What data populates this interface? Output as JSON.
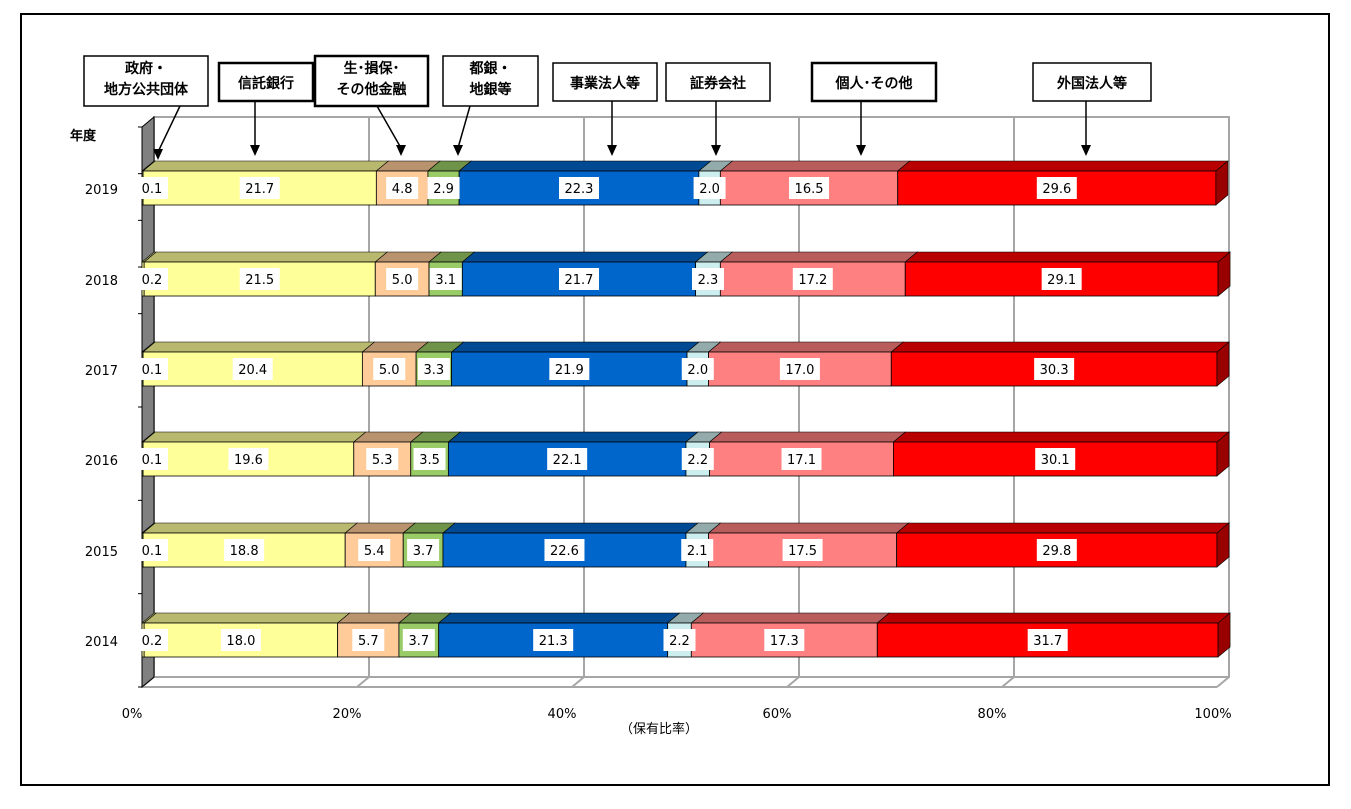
{
  "chart_data": {
    "type": "bar",
    "orientation": "horizontal",
    "stacked": true,
    "percent_stacked": true,
    "three_d": true,
    "ylabel": "年度",
    "xlabel": "（保有比率）",
    "x_ticks": [
      "0%",
      "20%",
      "40%",
      "60%",
      "80%",
      "100%"
    ],
    "xlim": [
      0,
      100
    ],
    "grid": true,
    "legend_placement": "top",
    "categories": [
      "2019",
      "2018",
      "2017",
      "2016",
      "2015",
      "2014"
    ],
    "series": [
      {
        "name": "政府・\n地方公共団体",
        "color": "#FFFF99",
        "values": [
          0.1,
          0.2,
          0.1,
          0.1,
          0.1,
          0.2
        ]
      },
      {
        "name": "信託銀行",
        "color": "#FFFF99",
        "values": [
          21.7,
          21.5,
          20.4,
          19.6,
          18.8,
          18.0
        ]
      },
      {
        "name": "生･損保･\nその他金融",
        "color": "#FFCC99",
        "values": [
          4.8,
          5.0,
          5.0,
          5.3,
          5.4,
          5.7
        ]
      },
      {
        "name": "都銀・\n地銀等",
        "color": "#99CC66",
        "values": [
          2.9,
          3.1,
          3.3,
          3.5,
          3.7,
          3.7
        ]
      },
      {
        "name": "事業法人等",
        "color": "#0066CC",
        "values": [
          22.3,
          21.7,
          21.9,
          22.1,
          22.6,
          21.3
        ]
      },
      {
        "name": "証券会社",
        "color": "#CCEEEE",
        "values": [
          2.0,
          2.3,
          2.0,
          2.2,
          2.1,
          2.2
        ]
      },
      {
        "name": "個人･その他",
        "color": "#FF8080",
        "values": [
          16.5,
          17.2,
          17.0,
          17.1,
          17.5,
          17.3
        ]
      },
      {
        "name": "外国法人等",
        "color": "#FF0000",
        "values": [
          29.6,
          29.1,
          30.3,
          30.1,
          29.8,
          31.7
        ]
      }
    ],
    "value_labels": [
      [
        "0.1",
        "21.7",
        "4.8",
        "2.9",
        "22.3",
        "2.0",
        "16.5",
        "29.6"
      ],
      [
        "0.2",
        "21.5",
        "5.0",
        "3.1",
        "21.7",
        "2.3",
        "17.2",
        "29.1"
      ],
      [
        "0.1",
        "20.4",
        "5.0",
        "3.3",
        "21.9",
        "2.0",
        "17.0",
        "30.3"
      ],
      [
        "0.1",
        "19.6",
        "5.3",
        "3.5",
        "22.1",
        "2.2",
        "17.1",
        "30.1"
      ],
      [
        "0.1",
        "18.8",
        "5.4",
        "3.7",
        "22.6",
        "2.1",
        "17.5",
        "29.8"
      ],
      [
        "0.2",
        "18.0",
        "5.7",
        "3.7",
        "21.3",
        "2.2",
        "17.3",
        "31.7"
      ]
    ]
  }
}
